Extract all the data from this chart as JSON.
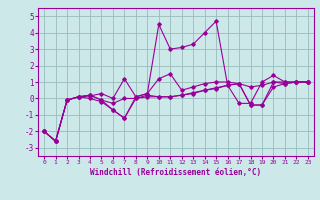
{
  "xlabel": "Windchill (Refroidissement éolien,°C)",
  "background_color": "#cce8e8",
  "grid_color": "#99bbbb",
  "line_color": "#990099",
  "xlim": [
    -0.5,
    23.5
  ],
  "ylim": [
    -3.5,
    5.5
  ],
  "xticks": [
    0,
    1,
    2,
    3,
    4,
    5,
    6,
    7,
    8,
    9,
    10,
    11,
    12,
    13,
    14,
    15,
    16,
    17,
    18,
    19,
    20,
    21,
    22,
    23
  ],
  "yticks": [
    -3,
    -2,
    -1,
    0,
    1,
    2,
    3,
    4,
    5
  ],
  "series": [
    [
      -2.0,
      -2.6,
      -0.1,
      0.1,
      0.2,
      -0.1,
      -0.7,
      -1.2,
      0.1,
      0.3,
      4.5,
      3.0,
      3.1,
      3.3,
      4.0,
      4.7,
      0.8,
      -0.3,
      -0.3,
      1.0,
      1.4,
      1.0,
      1.0,
      1.0
    ],
    [
      -2.0,
      -2.6,
      -0.1,
      0.1,
      0.15,
      0.3,
      0.0,
      1.2,
      0.1,
      0.3,
      1.2,
      1.5,
      0.5,
      0.7,
      0.9,
      1.0,
      1.0,
      0.9,
      0.7,
      0.8,
      1.0,
      1.0,
      1.0,
      1.0
    ],
    [
      -2.0,
      -2.6,
      -0.1,
      0.1,
      0.2,
      -0.1,
      -0.3,
      0.0,
      0.0,
      0.2,
      0.1,
      0.1,
      0.2,
      0.3,
      0.5,
      0.6,
      0.8,
      0.9,
      -0.4,
      -0.4,
      1.0,
      0.9,
      1.0,
      1.0
    ],
    [
      -2.0,
      -2.6,
      -0.1,
      0.1,
      0.0,
      -0.2,
      -0.7,
      -1.2,
      0.0,
      0.1,
      0.1,
      0.1,
      0.2,
      0.35,
      0.5,
      0.65,
      0.8,
      0.9,
      -0.4,
      -0.4,
      0.7,
      0.9,
      1.0,
      1.0
    ]
  ]
}
